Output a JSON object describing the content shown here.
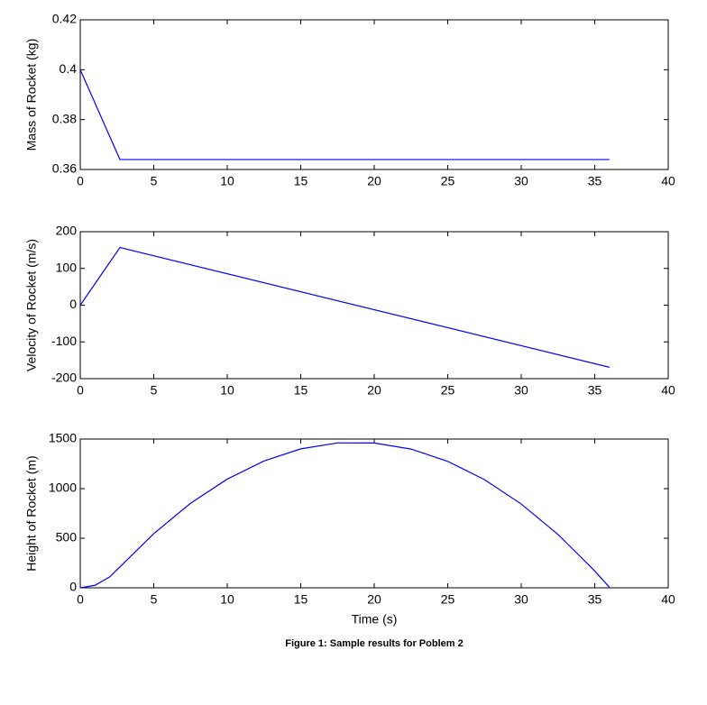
{
  "chart_data": [
    {
      "type": "line",
      "ylabel": "Mass of Rocket (kg)",
      "color": "#0000ff",
      "x": [
        0,
        2.7,
        36
      ],
      "values": [
        0.4,
        0.364,
        0.364
      ],
      "xlim": [
        0,
        40
      ],
      "xticks": [
        0,
        5,
        10,
        15,
        20,
        25,
        30,
        35,
        40
      ],
      "ylim": [
        0.36,
        0.42
      ],
      "yticks": [
        0.36,
        0.38,
        0.4,
        0.42
      ]
    },
    {
      "type": "line",
      "ylabel": "Velocity of Rocket (m/s)",
      "color": "#0000ff",
      "x": [
        0,
        2.7,
        36
      ],
      "values": [
        0,
        157,
        -169
      ],
      "xlim": [
        0,
        40
      ],
      "xticks": [
        0,
        5,
        10,
        15,
        20,
        25,
        30,
        35,
        40
      ],
      "ylim": [
        -200,
        200
      ],
      "yticks": [
        -200,
        -100,
        0,
        100,
        200
      ]
    },
    {
      "type": "line",
      "ylabel": "Height of Rocket (m)",
      "xlabel": "Time (s)",
      "color": "#0000ff",
      "x": [
        0,
        1,
        2,
        2.7,
        5,
        7.5,
        10,
        12.5,
        15,
        17.5,
        20,
        22.5,
        25,
        27.5,
        30,
        32.5,
        35,
        36
      ],
      "values": [
        0,
        25,
        110,
        211,
        546,
        852,
        1096,
        1279,
        1401,
        1461,
        1460,
        1399,
        1275,
        1091,
        845,
        538,
        170,
        5
      ],
      "xlim": [
        0,
        40
      ],
      "xticks": [
        0,
        5,
        10,
        15,
        20,
        25,
        30,
        35,
        40
      ],
      "ylim": [
        0,
        1500
      ],
      "yticks": [
        0,
        500,
        1000,
        1500
      ]
    }
  ],
  "caption": "Figure 1: Sample results for Poblem 2"
}
